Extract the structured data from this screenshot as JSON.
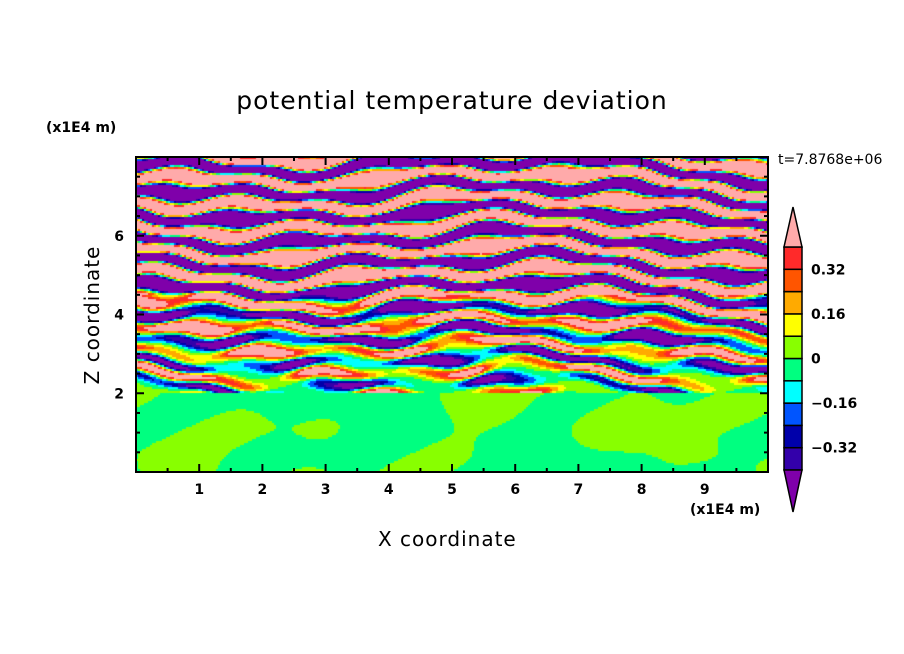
{
  "chart_data": {
    "type": "heatmap",
    "title": "potential temperature deviation",
    "xlabel": "X coordinate",
    "ylabel": "Z coordinate",
    "x_unit": "(x1E4 m)",
    "y_unit": "(x1E4 m)",
    "time_label": "t=7.8768e+06",
    "xlim": [
      0,
      10
    ],
    "ylim": [
      0,
      8
    ],
    "xticks": [
      1,
      2,
      3,
      4,
      5,
      6,
      7,
      8,
      9
    ],
    "yticks": [
      2,
      4,
      6
    ],
    "levels": [
      -0.4,
      -0.32,
      -0.24,
      -0.16,
      -0.08,
      0,
      0.08,
      0.16,
      0.24,
      0.32,
      0.4
    ],
    "colors": [
      "#7f00aa",
      "#3300aa",
      "#0000aa",
      "#0055ff",
      "#00ffff",
      "#00ff80",
      "#88ff00",
      "#ffff00",
      "#ffaa00",
      "#ff5500",
      "#ff2a2a",
      "#ffaaaa"
    ],
    "colorbar_labels": [
      "0.32",
      "0.16",
      "0",
      "-0.16",
      "-0.32"
    ],
    "colorbar_label_values": [
      0.32,
      0.16,
      0,
      -0.16,
      -0.32
    ]
  }
}
